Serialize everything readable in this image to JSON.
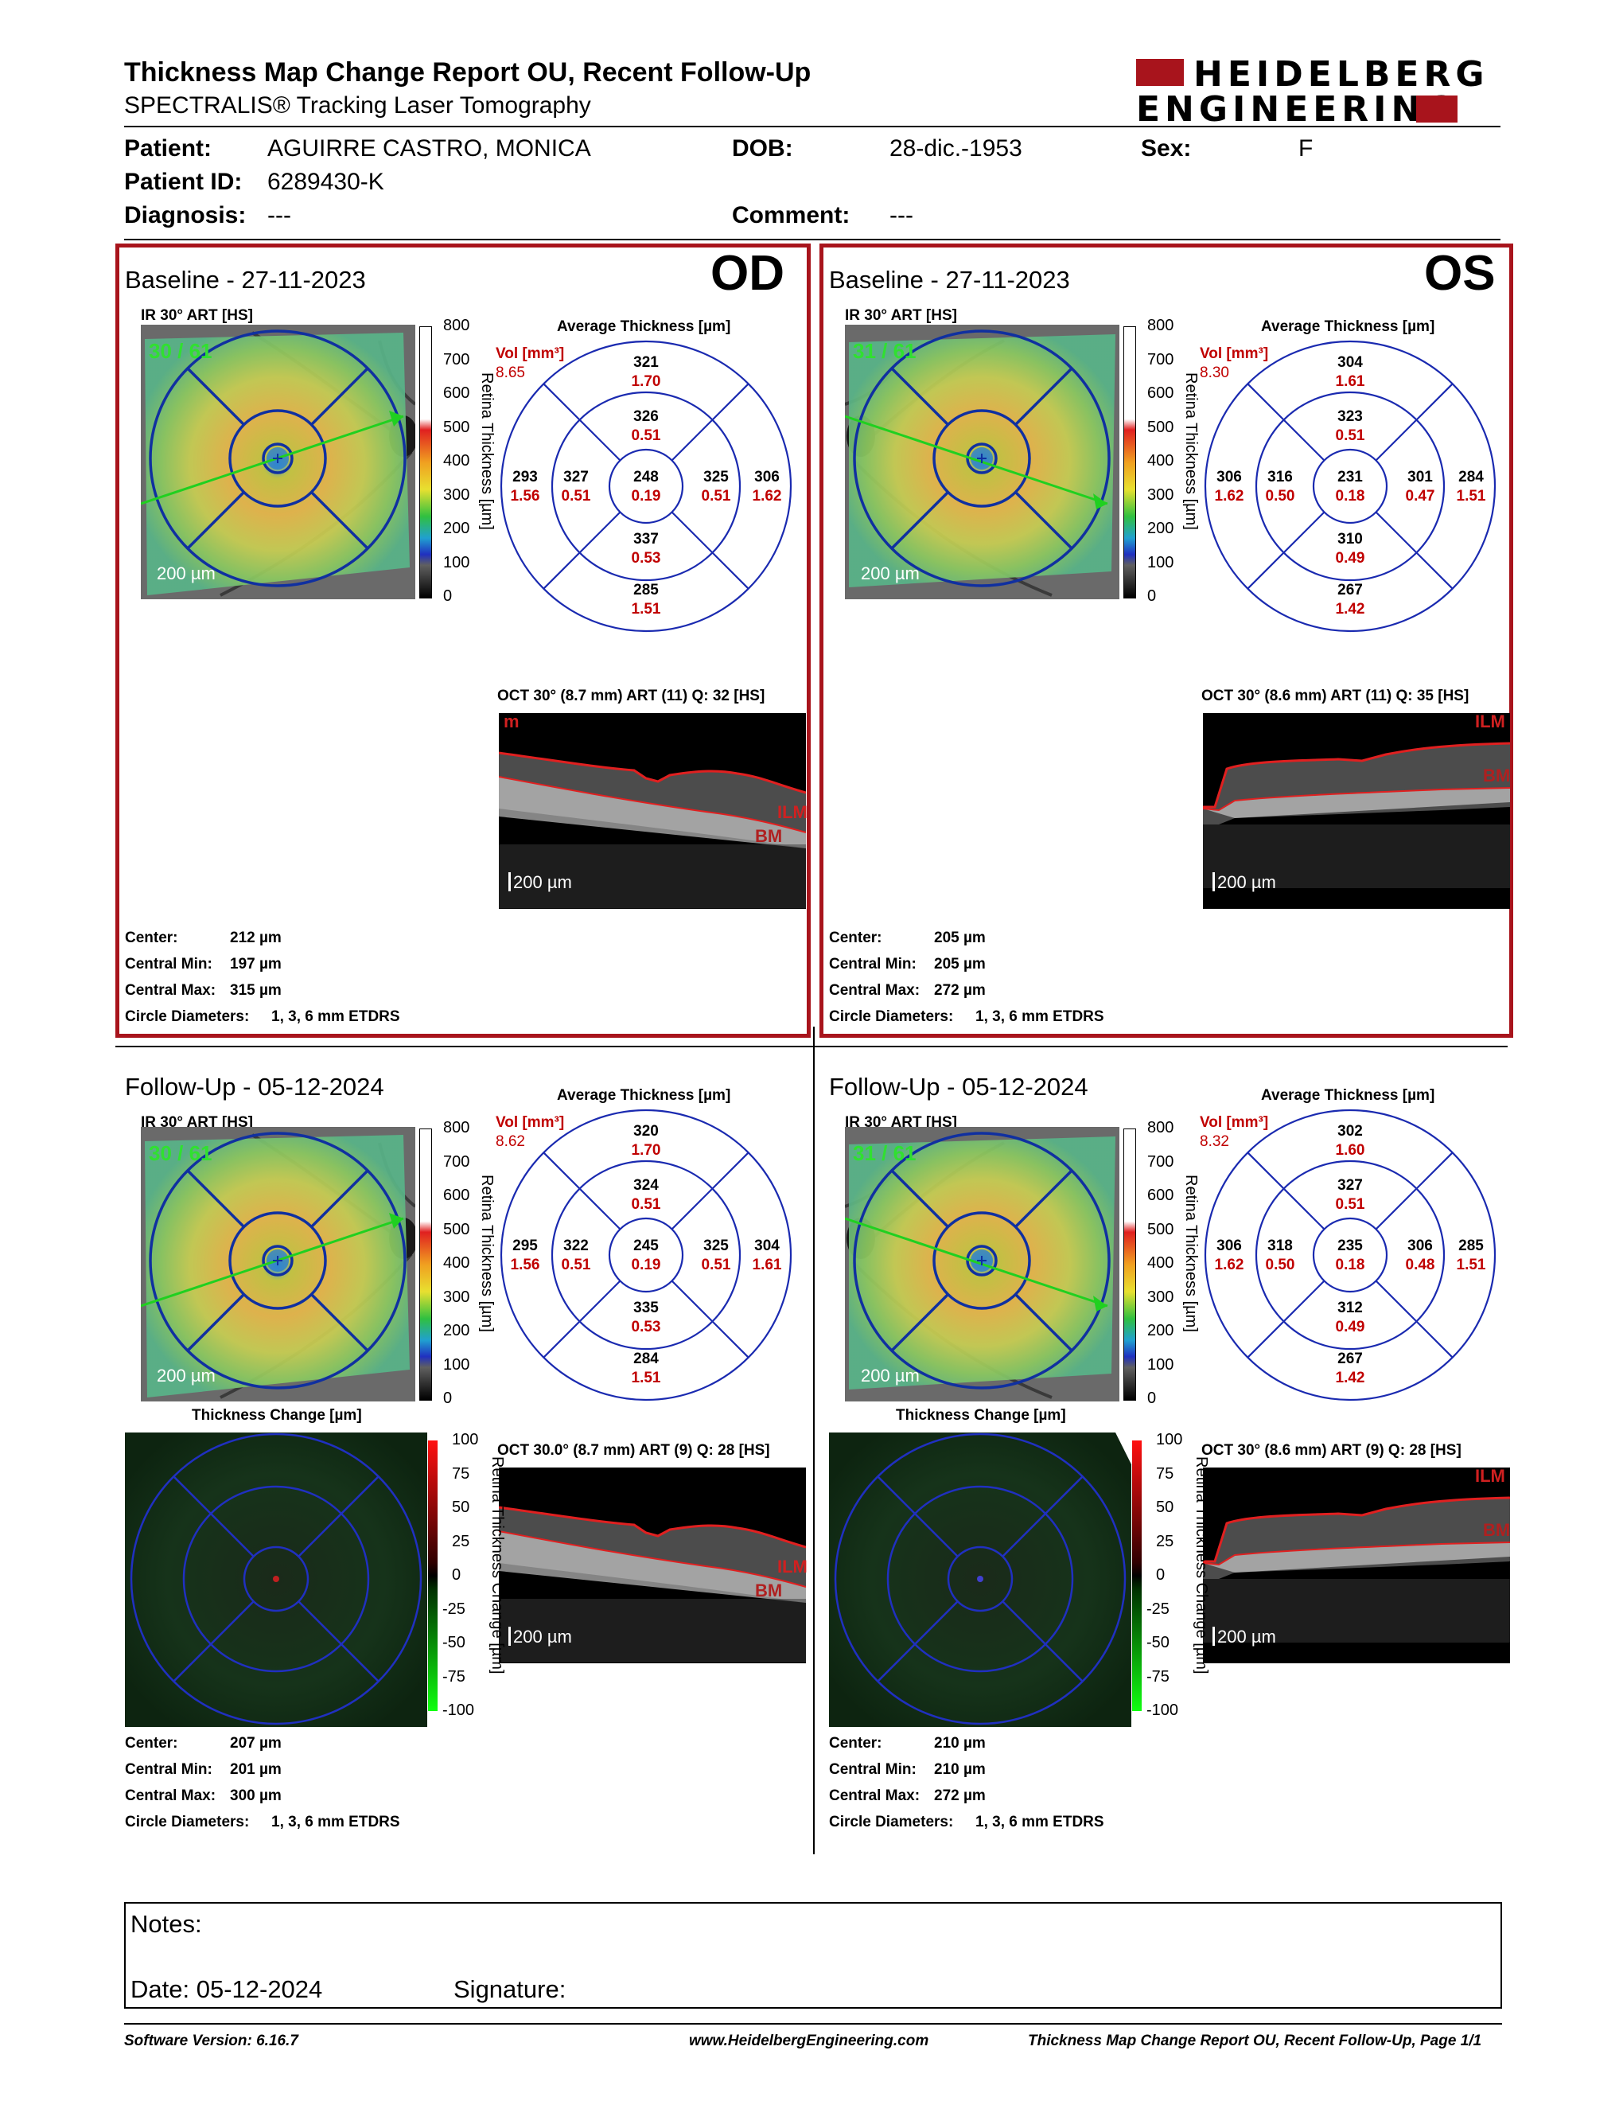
{
  "header": {
    "title": "Thickness Map Change Report OU, Recent Follow-Up",
    "subtitle": "SPECTRALIS® Tracking Laser Tomography",
    "logo_line1": "HEIDELBERG",
    "logo_line2": "ENGINEERING"
  },
  "patient": {
    "patient_label": "Patient:",
    "patient_value": "AGUIRRE CASTRO, MONICA",
    "dob_label": "DOB:",
    "dob_value": "28-dic.-1953",
    "sex_label": "Sex:",
    "sex_value": "F",
    "id_label": "Patient ID:",
    "id_value": "6289430-K",
    "diagnosis_label": "Diagnosis:",
    "diagnosis_value": "---",
    "comment_label": "Comment:",
    "comment_value": "---"
  },
  "common": {
    "avg_thickness_title": "Average Thickness [µm]",
    "vol_label": "Vol [mm³]",
    "ir_label": "IR 30° ART [HS]",
    "scale_bar": "200 µm",
    "retina_thickness_axis": "Retina Thickness [µm]",
    "change_axis": "Retina Thickness Change [µm]",
    "thickness_change_title": "Thickness Change [µm]",
    "ilm": "ILM",
    "bm": "BM",
    "center_label": "Center:",
    "central_min_label": "Central Min:",
    "central_max_label": "Central Max:",
    "circle_label": "Circle Diameters:",
    "circle_value": "1, 3, 6 mm ETDRS",
    "colorbar_ticks": [
      "800",
      "700",
      "600",
      "500",
      "400",
      "300",
      "200",
      "100",
      "0"
    ],
    "change_ticks": [
      "100",
      "75",
      "50",
      "25",
      "0",
      "-25",
      "-50",
      "-75",
      "-100"
    ]
  },
  "od_baseline": {
    "eye": "OD",
    "title": "Baseline - 27-11-2023",
    "ir_overlay": "30 / 61",
    "vol": "8.65",
    "oct_label": "OCT 30° (8.7 mm) ART (11) Q: 32 [HS]",
    "oct_tag": "m",
    "grid": {
      "sup_outer": [
        "321",
        "1.70"
      ],
      "sup_inner": [
        "326",
        "0.51"
      ],
      "nasal_outer": [
        "293",
        "1.56"
      ],
      "nasal_inner": [
        "327",
        "0.51"
      ],
      "center": [
        "248",
        "0.19"
      ],
      "temp_inner": [
        "325",
        "0.51"
      ],
      "temp_outer": [
        "306",
        "1.62"
      ],
      "inf_inner": [
        "337",
        "0.53"
      ],
      "inf_outer": [
        "285",
        "1.51"
      ]
    },
    "center": "212 µm",
    "central_min": "197 µm",
    "central_max": "315 µm"
  },
  "os_baseline": {
    "eye": "OS",
    "title": "Baseline - 27-11-2023",
    "ir_overlay": "31 / 61",
    "vol": "8.30",
    "oct_label": "OCT 30° (8.6 mm) ART (11) Q: 35 [HS]",
    "grid": {
      "sup_outer": [
        "304",
        "1.61"
      ],
      "sup_inner": [
        "323",
        "0.51"
      ],
      "nasal_outer": [
        "306",
        "1.62"
      ],
      "nasal_inner": [
        "316",
        "0.50"
      ],
      "center": [
        "231",
        "0.18"
      ],
      "temp_inner": [
        "301",
        "0.47"
      ],
      "temp_outer": [
        "284",
        "1.51"
      ],
      "inf_inner": [
        "310",
        "0.49"
      ],
      "inf_outer": [
        "267",
        "1.42"
      ]
    },
    "center": "205 µm",
    "central_min": "205 µm",
    "central_max": "272 µm"
  },
  "od_followup": {
    "title": "Follow-Up - 05-12-2024",
    "ir_overlay": "30 / 61",
    "vol": "8.62",
    "oct_label": "OCT 30.0° (8.7 mm) ART (9) Q: 28 [HS]",
    "grid": {
      "sup_outer": [
        "320",
        "1.70"
      ],
      "sup_inner": [
        "324",
        "0.51"
      ],
      "nasal_outer": [
        "295",
        "1.56"
      ],
      "nasal_inner": [
        "322",
        "0.51"
      ],
      "center": [
        "245",
        "0.19"
      ],
      "temp_inner": [
        "325",
        "0.51"
      ],
      "temp_outer": [
        "304",
        "1.61"
      ],
      "inf_inner": [
        "335",
        "0.53"
      ],
      "inf_outer": [
        "284",
        "1.51"
      ]
    },
    "center": "207 µm",
    "central_min": "201 µm",
    "central_max": "300 µm"
  },
  "os_followup": {
    "title": "Follow-Up - 05-12-2024",
    "ir_overlay": "31 / 61",
    "vol": "8.32",
    "oct_label": "OCT 30° (8.6 mm) ART (9) Q: 28 [HS]",
    "grid": {
      "sup_outer": [
        "302",
        "1.60"
      ],
      "sup_inner": [
        "327",
        "0.51"
      ],
      "nasal_outer": [
        "306",
        "1.62"
      ],
      "nasal_inner": [
        "318",
        "0.50"
      ],
      "center": [
        "235",
        "0.18"
      ],
      "temp_inner": [
        "306",
        "0.48"
      ],
      "temp_outer": [
        "285",
        "1.51"
      ],
      "inf_inner": [
        "312",
        "0.49"
      ],
      "inf_outer": [
        "267",
        "1.42"
      ]
    },
    "center": "210 µm",
    "central_min": "210 µm",
    "central_max": "272 µm"
  },
  "notes": {
    "notes_label": "Notes:",
    "date_label": "Date: 05-12-2024",
    "signature_label": "Signature:"
  },
  "footer": {
    "software": "Software Version: 6.16.7",
    "website": "www.HeidelbergEngineering.com",
    "page": "Thickness Map Change Report OU, Recent Follow-Up, Page 1/1"
  }
}
